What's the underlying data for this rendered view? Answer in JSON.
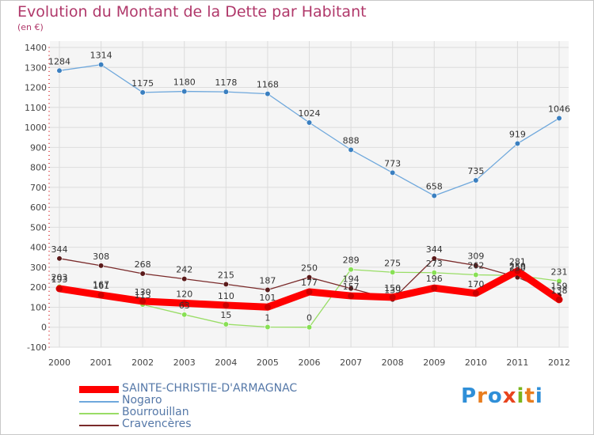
{
  "header": {
    "title": "Evolution du Montant de la Dette par Habitant",
    "unit": "(en €)"
  },
  "logo": {
    "letters": [
      "P",
      "r",
      "o",
      "x",
      "i",
      "t",
      "i"
    ],
    "colors": [
      "#2f8fd8",
      "#e87d1e",
      "#2f8fd8",
      "#e8441e",
      "#7ab51d",
      "#e87d1e",
      "#2f8fd8"
    ]
  },
  "chart_data": {
    "type": "line",
    "title": "Evolution du Montant de la Dette par Habitant",
    "ylabel": "(en €)",
    "xlabel": "",
    "categories": [
      "2000",
      "2001",
      "2002",
      "2003",
      "2004",
      "2005",
      "2006",
      "2007",
      "2008",
      "2009",
      "2010",
      "2011",
      "2012"
    ],
    "yticks": [
      "1400",
      "1300",
      "1200",
      "1100",
      "1000",
      "900",
      "800",
      "700",
      "600",
      "500",
      "400",
      "300",
      "200",
      "100",
      "0",
      "-100"
    ],
    "ylim": [
      -100,
      1400
    ],
    "grid": true,
    "legend_position": "bottom-left",
    "series": [
      {
        "name": "SAINTE-CHRISTIE-D'ARMAGNAC",
        "color": "#ff0000",
        "values": [
          193,
          161,
          130,
          120,
          110,
          101,
          177,
          157,
          150,
          196,
          170,
          281,
          138
        ],
        "labels": [
          "193",
          "161",
          "130",
          "120",
          "110",
          "101",
          "177",
          "157",
          "150",
          "196",
          "170",
          "281",
          "138"
        ]
      },
      {
        "name": "Nogaro",
        "color": "#6fa8dc",
        "values": [
          1284,
          1314,
          1175,
          1180,
          1178,
          1168,
          1024,
          888,
          773,
          658,
          735,
          919,
          1046
        ],
        "labels": [
          "1284",
          "1314",
          "1175",
          "1180",
          "1178",
          "1168",
          "1024",
          "888",
          "773",
          "658",
          "735",
          "919",
          "1046"
        ]
      },
      {
        "name": "Bourrouillan",
        "color": "#99dd66",
        "values": [
          203,
          167,
          113,
          63,
          15,
          1,
          0,
          289,
          275,
          273,
          262,
          259,
          231
        ],
        "labels": [
          "203",
          "167",
          "113",
          "63",
          "15",
          "1",
          "0",
          "289",
          "275",
          "273",
          "262",
          "259",
          "231"
        ]
      },
      {
        "name": "Cravencères",
        "color": "#7a2a2a",
        "values": [
          344,
          308,
          268,
          242,
          215,
          187,
          250,
          194,
          139,
          344,
          309,
          250,
          159
        ],
        "labels": [
          "344",
          "308",
          "268",
          "242",
          "215",
          "187",
          "250",
          "194",
          "139",
          "344",
          "309",
          "250",
          "159"
        ]
      }
    ]
  }
}
